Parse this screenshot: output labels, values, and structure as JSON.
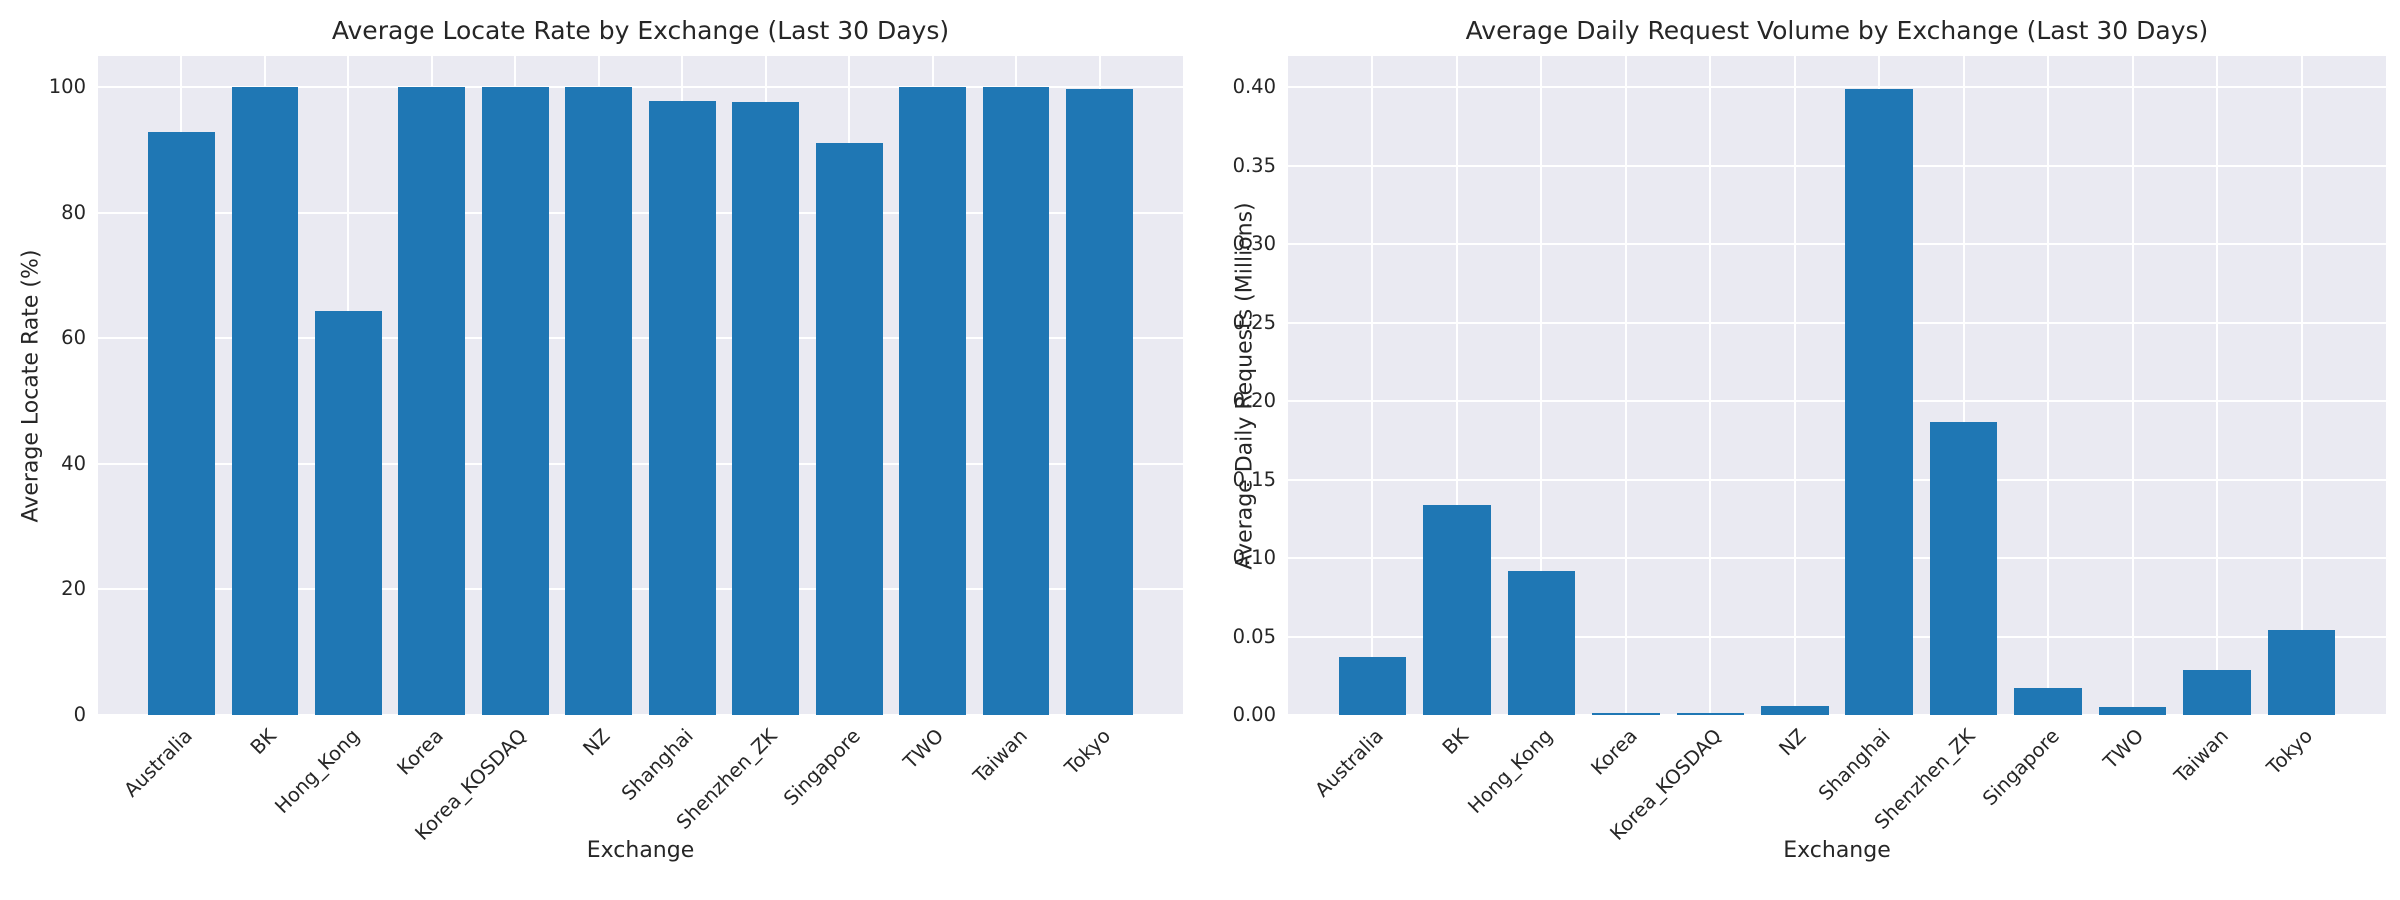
{
  "style": {
    "figure_background": "#ffffff",
    "axes_background": "#eaeaf2",
    "grid_color": "#ffffff",
    "text_color": "#262626",
    "bar_color": "#1f77b4"
  },
  "chart_data": [
    {
      "type": "bar",
      "title": "Average Locate Rate by Exchange (Last 30 Days)",
      "xlabel": "Exchange",
      "ylabel": "Average Locate Rate (%)",
      "categories": [
        "Australia",
        "BK",
        "Hong_Kong",
        "Korea",
        "Korea_KOSDAQ",
        "NZ",
        "Shanghai",
        "Shenzhen_ZK",
        "Singapore",
        "TWO",
        "Taiwan",
        "Tokyo"
      ],
      "values": [
        92.9,
        100.0,
        64.3,
        100.0,
        100.0,
        100.0,
        97.9,
        97.6,
        91.2,
        100.0,
        100.0,
        99.8
      ],
      "ytick_values": [
        0,
        20,
        40,
        60,
        80,
        100
      ],
      "ytick_labels": [
        "0",
        "20",
        "40",
        "60",
        "80",
        "100"
      ],
      "ylim": [
        0,
        105
      ],
      "grid": true,
      "legend": null,
      "bar_color": "#1f77b4"
    },
    {
      "type": "bar",
      "title": "Average Daily Request Volume by Exchange (Last 30 Days)",
      "xlabel": "Exchange",
      "ylabel": "Average Daily Requests (Millions)",
      "categories": [
        "Australia",
        "BK",
        "Hong_Kong",
        "Korea",
        "Korea_KOSDAQ",
        "NZ",
        "Shanghai",
        "Shenzhen_ZK",
        "Singapore",
        "TWO",
        "Taiwan",
        "Tokyo"
      ],
      "values": [
        0.037,
        0.134,
        0.092,
        0.001,
        0.001,
        0.006,
        0.399,
        0.187,
        0.017,
        0.005,
        0.029,
        0.054
      ],
      "ytick_values": [
        0.0,
        0.05,
        0.1,
        0.15,
        0.2,
        0.25,
        0.3,
        0.35,
        0.4
      ],
      "ytick_labels": [
        "0.00",
        "0.05",
        "0.10",
        "0.15",
        "0.20",
        "0.25",
        "0.30",
        "0.35",
        "0.40"
      ],
      "ylim": [
        0,
        0.42
      ],
      "grid": true,
      "legend": null,
      "bar_color": "#1f77b4"
    }
  ]
}
